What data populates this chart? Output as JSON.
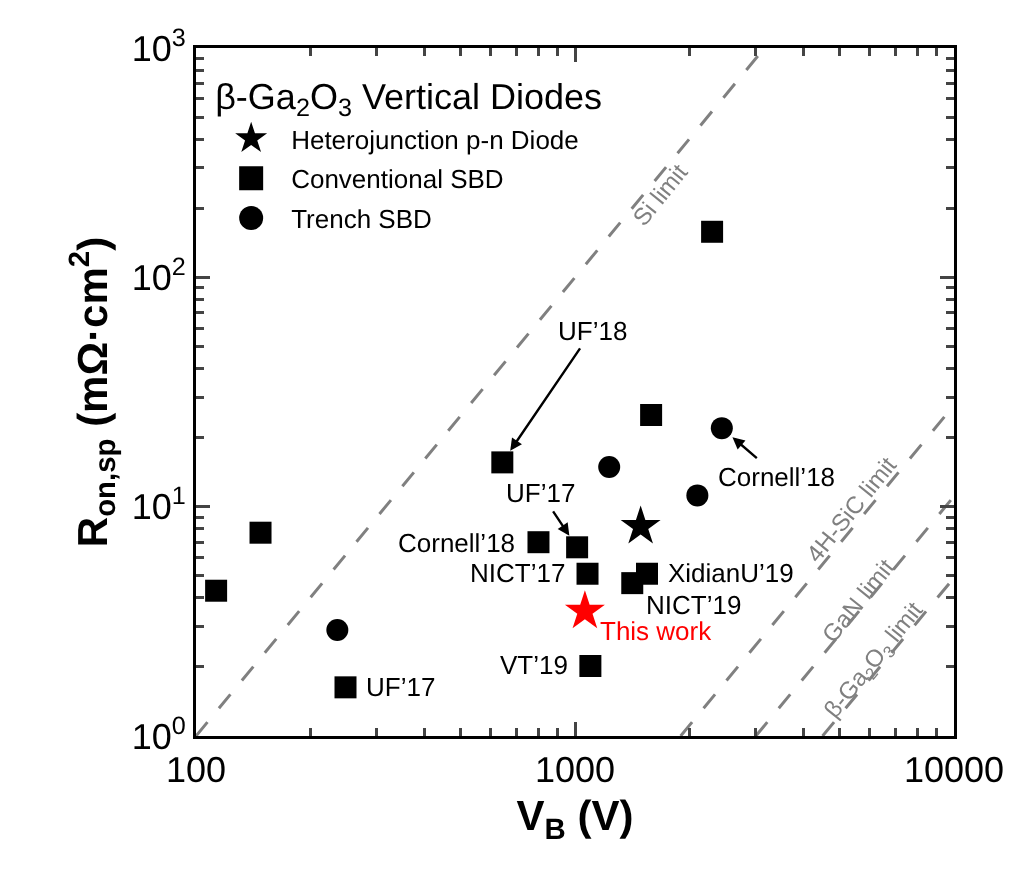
{
  "chart_data": {
    "type": "scatter",
    "xlabel": "V$_{B}$ (V)",
    "ylabel": "R$_{on,sp}$ (mΩ·cm$^{2}$)",
    "legend_title": "β-Ga$_{2}$O$_{3}$ Vertical Diodes",
    "log": "xy",
    "legend": "top left",
    "grid": false,
    "xlim": [
      100,
      10000
    ],
    "xticks": [
      100,
      1000,
      10000
    ],
    "ylim": [
      1,
      1000
    ],
    "yticks": [
      {
        "value": 1,
        "label": "10$^{0}$"
      },
      {
        "value": 10,
        "label": "10$^{1}$"
      },
      {
        "value": 100,
        "label": "10$^{2}$"
      },
      {
        "value": 1000,
        "label": "10$^{3}$"
      }
    ],
    "series": [
      {
        "name": "Heterojunction p-n Diode",
        "type": "scatter",
        "marker": "star",
        "color": "#000000",
        "colors": [
          "#000000",
          "#ff0000"
        ],
        "x": [
          1490,
          1062
        ],
        "values": [
          8.2,
          3.5
        ]
      },
      {
        "name": "Conventional SBD",
        "type": "scatter",
        "marker": "square",
        "color": "#000000",
        "x": [
          113,
          148,
          248,
          643,
          1588,
          801,
          1013,
          1079,
          1549,
          1416,
          1098,
          2300
        ],
        "values": [
          4.3,
          7.7,
          1.63,
          15.6,
          25.1,
          7.0,
          6.65,
          5.1,
          5.1,
          4.64,
          2.02,
          158
        ]
      },
      {
        "name": "Trench SBD",
        "type": "scatter",
        "marker": "circle",
        "color": "#000000",
        "x": [
          236,
          1231,
          2440,
          2103
        ],
        "values": [
          2.9,
          14.9,
          22.0,
          11.2
        ]
      },
      {
        "name": "Si limit",
        "type": "line",
        "marker": "none",
        "line_style": "dashed",
        "color": "#808080",
        "x": [
          100,
          3162
        ],
        "values": [
          1,
          1000
        ]
      },
      {
        "name": "4H-SiC limit",
        "type": "line",
        "marker": "none",
        "line_style": "dashed",
        "color": "#808080",
        "x": [
          1900,
          10000
        ],
        "values": [
          1,
          27.7
        ]
      },
      {
        "name": "GaN limit",
        "type": "line",
        "marker": "none",
        "line_style": "dashed",
        "color": "#808080",
        "x": [
          3000,
          10000
        ],
        "values": [
          1,
          11.1
        ]
      },
      {
        "name": "β-Ga$_{2}$O$_{3}$ limit",
        "type": "line",
        "marker": "none",
        "line_style": "dashed",
        "color": "#808080",
        "x": [
          4500,
          10000
        ],
        "values": [
          1,
          4.9
        ]
      }
    ],
    "annotations": [
      {
        "text": "UF’18",
        "x": 643,
        "y": 15.6
      },
      {
        "text": "UF’17",
        "x": 1013,
        "y": 6.65
      },
      {
        "text": "Cornell’18",
        "x": 2440,
        "y": 22.0
      },
      {
        "text": "Cornell’18",
        "x": 801,
        "y": 7.0
      },
      {
        "text": "NICT’17",
        "x": 1079,
        "y": 5.1
      },
      {
        "text": "XidianU’19",
        "x": 1549,
        "y": 5.1
      },
      {
        "text": "NICT’19",
        "x": 1416,
        "y": 4.64
      },
      {
        "text": "VT’19",
        "x": 1098,
        "y": 2.02
      },
      {
        "text": "UF’17",
        "x": 248,
        "y": 1.63
      },
      {
        "text": "This work",
        "x": 1062,
        "y": 3.5
      }
    ]
  }
}
